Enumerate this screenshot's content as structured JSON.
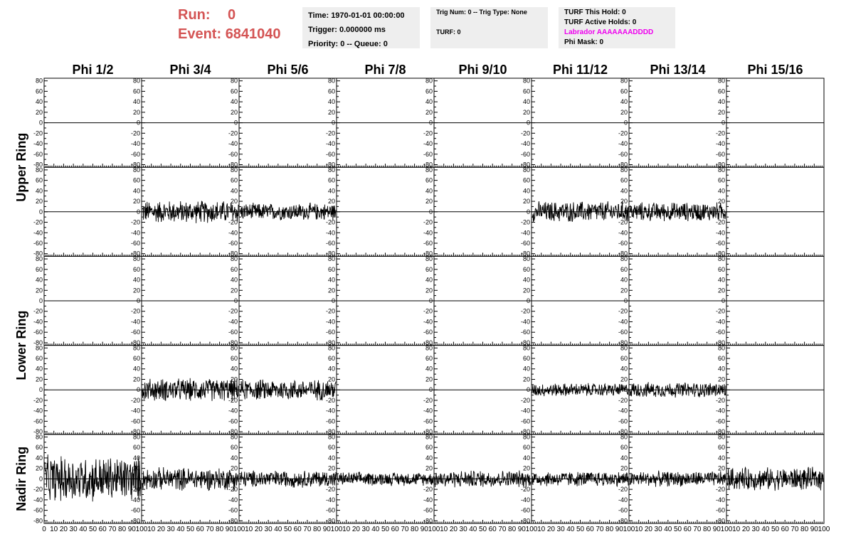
{
  "run": {
    "label": "Run:",
    "value": "0"
  },
  "event": {
    "label": "Event:",
    "value": "6841040"
  },
  "info_box_1": {
    "time": "Time: 1970-01-01 00:00:00",
    "trigger": "Trigger: 0.000000 ms",
    "priority": "Priority: 0 -- Queue: 0"
  },
  "info_box_2": {
    "trig": "Trig Num: 0 -- Trig Type: None",
    "turf": "TURF: 0"
  },
  "info_box_3": {
    "hold": "TURF This Hold: 0",
    "active": "TURF Active Holds: 0",
    "labrador": "Labrador AAAAAAADDDD",
    "phimask": "Phi Mask: 0"
  },
  "colors": {
    "run_text": "#d45454",
    "labrador_text": "#ee00ee",
    "info_bg": "#eeeeee"
  },
  "chart_data": {
    "type": "line",
    "layout": "grid of 8 columns x 5 rows of waveform panels",
    "columns": [
      "Phi 1/2",
      "Phi 3/4",
      "Phi 5/6",
      "Phi 7/8",
      "Phi 9/10",
      "Phi 11/12",
      "Phi 13/14",
      "Phi 15/16"
    ],
    "ring_labels": [
      {
        "text": "Upper Ring",
        "rows": [
          0,
          1
        ]
      },
      {
        "text": "Lower Ring",
        "rows": [
          2,
          3
        ]
      },
      {
        "text": "Nadir Ring",
        "rows": [
          4
        ]
      }
    ],
    "ylim": [
      -85,
      85
    ],
    "yticks": [
      80,
      60,
      40,
      20,
      0,
      -20,
      -40,
      -60,
      -80
    ],
    "xlim": [
      0,
      100
    ],
    "xticks_first": [
      0,
      10,
      20,
      30,
      40,
      50,
      60,
      70,
      80,
      90,
      100
    ],
    "xticks_other": [
      10,
      20,
      30,
      40,
      50,
      60,
      70,
      80,
      90,
      100
    ],
    "zero_line": true,
    "active_panels": [
      {
        "row": 1,
        "col": 1,
        "amplitude": 24,
        "samples": 260
      },
      {
        "row": 1,
        "col": 2,
        "amplitude": 18,
        "samples": 260
      },
      {
        "row": 1,
        "col": 5,
        "amplitude": 22,
        "samples": 260
      },
      {
        "row": 1,
        "col": 6,
        "amplitude": 20,
        "samples": 260
      },
      {
        "row": 3,
        "col": 1,
        "amplitude": 24,
        "samples": 260
      },
      {
        "row": 3,
        "col": 2,
        "amplitude": 22,
        "samples": 260
      },
      {
        "row": 3,
        "col": 5,
        "amplitude": 14,
        "samples": 260
      },
      {
        "row": 3,
        "col": 6,
        "amplitude": 16,
        "samples": 260
      },
      {
        "row": 4,
        "col": 0,
        "amplitude": 48,
        "samples": 260
      },
      {
        "row": 4,
        "col": 1,
        "amplitude": 24,
        "samples": 260
      },
      {
        "row": 4,
        "col": 2,
        "amplitude": 18,
        "samples": 260
      },
      {
        "row": 4,
        "col": 3,
        "amplitude": 14,
        "samples": 260
      },
      {
        "row": 4,
        "col": 4,
        "amplitude": 18,
        "samples": 260
      },
      {
        "row": 4,
        "col": 5,
        "amplitude": 16,
        "samples": 260
      },
      {
        "row": 4,
        "col": 6,
        "amplitude": 16,
        "samples": 260
      },
      {
        "row": 4,
        "col": 7,
        "amplitude": 24,
        "samples": 260
      }
    ]
  }
}
